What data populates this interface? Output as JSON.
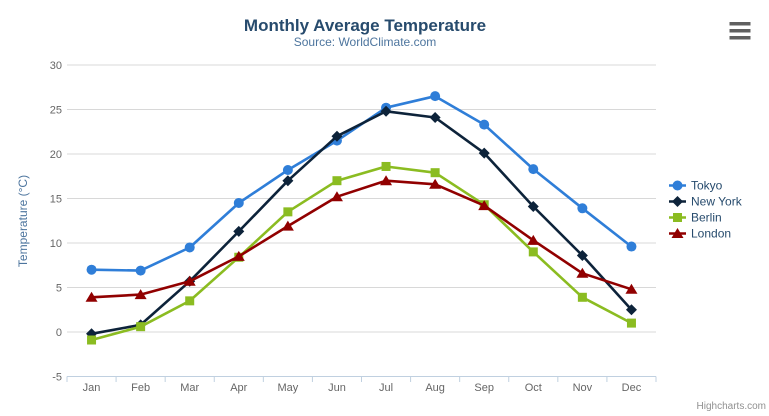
{
  "chart": {
    "subtitle": "Source: WorldClimate.com",
    "credit": "Highcharts.com",
    "export_menu_icon": "hamburger-icon",
    "theme": {
      "title_color": "#274b6d",
      "subtitle_color": "#4d759e",
      "axis_label_color": "#666666",
      "yaxis_title_color": "#4d759e",
      "grid_color": "#d8d8d8",
      "axis_line_color": "#c0d0e0",
      "legend_text_color": "#274b6d",
      "credit_color": "#909090",
      "burger_color": "#606060",
      "background": "#ffffff"
    }
  },
  "chart_data": {
    "type": "line",
    "title": "Monthly Average Temperature",
    "subtitle": "Source: WorldClimate.com",
    "xlabel": "",
    "ylabel": "Temperature (°C)",
    "categories": [
      "Jan",
      "Feb",
      "Mar",
      "Apr",
      "May",
      "Jun",
      "Jul",
      "Aug",
      "Sep",
      "Oct",
      "Nov",
      "Dec"
    ],
    "ylim": [
      -5,
      30
    ],
    "ytick_step": 5,
    "yticks": [
      30,
      25,
      20,
      15,
      10,
      5,
      0,
      -5
    ],
    "grid": true,
    "legend_position": "right",
    "series": [
      {
        "name": "Tokyo",
        "color": "#2f7ed8",
        "marker": "circle",
        "values": [
          7.0,
          6.9,
          9.5,
          14.5,
          18.2,
          21.5,
          25.2,
          26.5,
          23.3,
          18.3,
          13.9,
          9.6
        ]
      },
      {
        "name": "New York",
        "color": "#0d233a",
        "marker": "diamond",
        "values": [
          -0.2,
          0.8,
          5.7,
          11.3,
          17.0,
          22.0,
          24.8,
          24.1,
          20.1,
          14.1,
          8.6,
          2.5
        ]
      },
      {
        "name": "Berlin",
        "color": "#8bbc21",
        "marker": "square",
        "values": [
          -0.9,
          0.6,
          3.5,
          8.4,
          13.5,
          17.0,
          18.6,
          17.9,
          14.3,
          9.0,
          3.9,
          1.0
        ]
      },
      {
        "name": "London",
        "color": "#910000",
        "marker": "triangle",
        "values": [
          3.9,
          4.2,
          5.7,
          8.5,
          11.9,
          15.2,
          17.0,
          16.6,
          14.2,
          10.3,
          6.6,
          4.8
        ]
      }
    ]
  }
}
